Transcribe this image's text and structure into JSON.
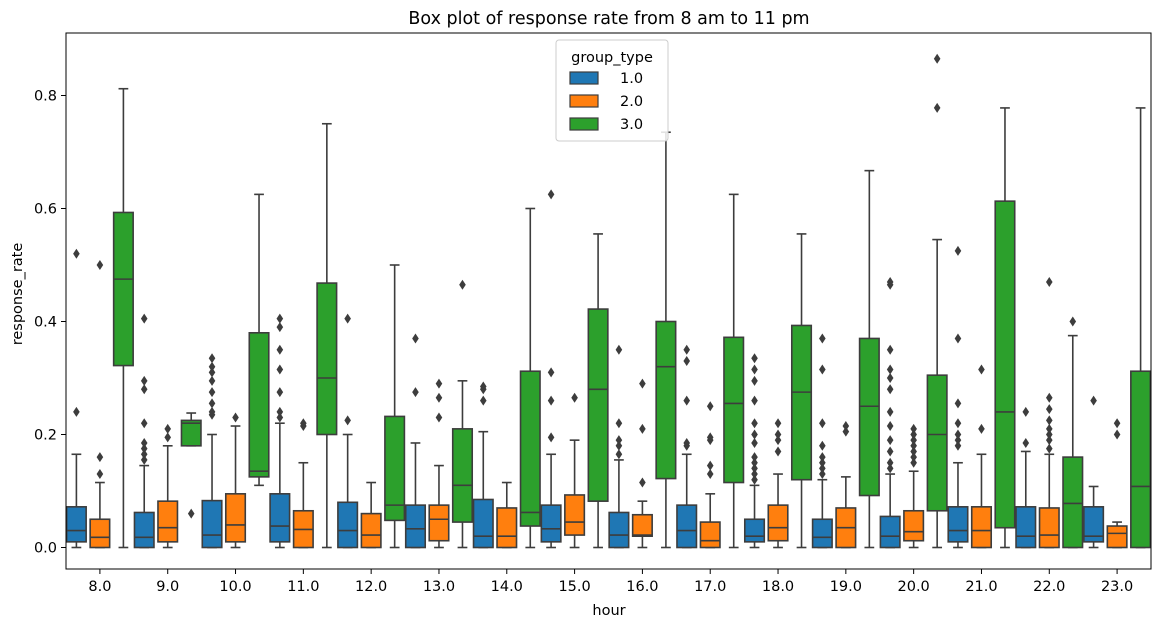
{
  "chart_data": {
    "type": "box",
    "title": "Box plot of response rate from 8 am to 11 pm",
    "xlabel": "hour",
    "ylabel": "response_rate",
    "ylim": [
      -0.04,
      0.91
    ],
    "yticks": [
      0.0,
      0.2,
      0.4,
      0.6,
      0.8
    ],
    "ytick_labels": [
      "0.0",
      "0.2",
      "0.4",
      "0.6",
      "0.8"
    ],
    "categories": [
      "8.0",
      "9.0",
      "10.0",
      "11.0",
      "12.0",
      "13.0",
      "14.0",
      "15.0",
      "16.0",
      "17.0",
      "18.0",
      "19.0",
      "20.0",
      "21.0",
      "22.0",
      "23.0"
    ],
    "grid": false,
    "legend": {
      "title": "group_type",
      "position": "top-center"
    },
    "series": [
      {
        "name": "1.0",
        "color": "#1f77b4",
        "boxes": [
          {
            "whislo": 0.0,
            "q1": 0.01,
            "med": 0.03,
            "q3": 0.072,
            "whishi": 0.165,
            "fliers": [
              0.24,
              0.52
            ]
          },
          {
            "whislo": 0.0,
            "q1": 0.0,
            "med": 0.018,
            "q3": 0.062,
            "whishi": 0.145,
            "fliers": [
              0.155,
              0.165,
              0.175,
              0.185,
              0.22,
              0.28,
              0.295,
              0.405
            ]
          },
          {
            "whislo": 0.0,
            "q1": 0.0,
            "med": 0.022,
            "q3": 0.083,
            "whishi": 0.2,
            "fliers": [
              0.235,
              0.24,
              0.255,
              0.275,
              0.295,
              0.31,
              0.32,
              0.335
            ]
          },
          {
            "whislo": 0.0,
            "q1": 0.01,
            "med": 0.038,
            "q3": 0.095,
            "whishi": 0.22,
            "fliers": [
              0.23,
              0.24,
              0.275,
              0.315,
              0.35,
              0.39,
              0.405
            ]
          },
          {
            "whislo": 0.0,
            "q1": 0.0,
            "med": 0.03,
            "q3": 0.08,
            "whishi": 0.2,
            "fliers": [
              0.225,
              0.405
            ]
          },
          {
            "whislo": 0.0,
            "q1": 0.0,
            "med": 0.033,
            "q3": 0.075,
            "whishi": 0.185,
            "fliers": [
              0.275,
              0.37
            ]
          },
          {
            "whislo": 0.0,
            "q1": 0.0,
            "med": 0.02,
            "q3": 0.085,
            "whishi": 0.205,
            "fliers": [
              0.26,
              0.28,
              0.285
            ]
          },
          {
            "whislo": 0.0,
            "q1": 0.01,
            "med": 0.033,
            "q3": 0.075,
            "whishi": 0.165,
            "fliers": [
              0.195,
              0.26,
              0.31,
              0.625
            ]
          },
          {
            "whislo": 0.0,
            "q1": 0.0,
            "med": 0.022,
            "q3": 0.062,
            "whishi": 0.155,
            "fliers": [
              0.165,
              0.18,
              0.19,
              0.22,
              0.35
            ]
          },
          {
            "whislo": 0.0,
            "q1": 0.0,
            "med": 0.03,
            "q3": 0.075,
            "whishi": 0.165,
            "fliers": [
              0.18,
              0.185,
              0.26,
              0.33,
              0.35
            ]
          },
          {
            "whislo": 0.0,
            "q1": 0.01,
            "med": 0.02,
            "q3": 0.05,
            "whishi": 0.11,
            "fliers": [
              0.12,
              0.13,
              0.14,
              0.15,
              0.16,
              0.185,
              0.2,
              0.22,
              0.26,
              0.295,
              0.315,
              0.335
            ]
          },
          {
            "whislo": 0.0,
            "q1": 0.0,
            "med": 0.018,
            "q3": 0.05,
            "whishi": 0.12,
            "fliers": [
              0.13,
              0.14,
              0.15,
              0.16,
              0.18,
              0.22,
              0.315,
              0.37
            ]
          },
          {
            "whislo": 0.0,
            "q1": 0.0,
            "med": 0.02,
            "q3": 0.055,
            "whishi": 0.13,
            "fliers": [
              0.14,
              0.15,
              0.17,
              0.19,
              0.215,
              0.24,
              0.28,
              0.3,
              0.315,
              0.35,
              0.465,
              0.47
            ]
          },
          {
            "whislo": 0.0,
            "q1": 0.01,
            "med": 0.03,
            "q3": 0.072,
            "whishi": 0.15,
            "fliers": [
              0.18,
              0.19,
              0.2,
              0.22,
              0.255,
              0.37,
              0.525
            ]
          },
          {
            "whislo": 0.0,
            "q1": 0.0,
            "med": 0.02,
            "q3": 0.072,
            "whishi": 0.17,
            "fliers": [
              0.185,
              0.24
            ]
          },
          {
            "whislo": 0.0,
            "q1": 0.01,
            "med": 0.02,
            "q3": 0.072,
            "whishi": 0.108,
            "fliers": [
              0.26
            ]
          }
        ]
      },
      {
        "name": "2.0",
        "color": "#ff7f0e",
        "boxes": [
          {
            "whislo": 0.0,
            "q1": 0.0,
            "med": 0.018,
            "q3": 0.05,
            "whishi": 0.115,
            "fliers": [
              0.13,
              0.16,
              0.5
            ]
          },
          {
            "whislo": 0.0,
            "q1": 0.01,
            "med": 0.035,
            "q3": 0.082,
            "whishi": 0.18,
            "fliers": [
              0.195,
              0.21
            ]
          },
          {
            "whislo": 0.0,
            "q1": 0.01,
            "med": 0.04,
            "q3": 0.095,
            "whishi": 0.215,
            "fliers": [
              0.23
            ]
          },
          {
            "whislo": 0.0,
            "q1": 0.0,
            "med": 0.032,
            "q3": 0.065,
            "whishi": 0.15,
            "fliers": [
              0.215,
              0.22
            ]
          },
          {
            "whislo": 0.0,
            "q1": 0.0,
            "med": 0.022,
            "q3": 0.06,
            "whishi": 0.115,
            "fliers": []
          },
          {
            "whislo": 0.0,
            "q1": 0.012,
            "med": 0.05,
            "q3": 0.075,
            "whishi": 0.145,
            "fliers": [
              0.23,
              0.265,
              0.29
            ]
          },
          {
            "whislo": 0.0,
            "q1": 0.0,
            "med": 0.02,
            "q3": 0.07,
            "whishi": 0.115,
            "fliers": []
          },
          {
            "whislo": 0.0,
            "q1": 0.022,
            "med": 0.045,
            "q3": 0.093,
            "whishi": 0.19,
            "fliers": [
              0.265
            ]
          },
          {
            "whislo": 0.0,
            "q1": 0.02,
            "med": 0.022,
            "q3": 0.058,
            "whishi": 0.082,
            "fliers": [
              0.115,
              0.21,
              0.29
            ]
          },
          {
            "whislo": 0.0,
            "q1": 0.0,
            "med": 0.012,
            "q3": 0.045,
            "whishi": 0.095,
            "fliers": [
              0.13,
              0.145,
              0.19,
              0.195,
              0.25
            ]
          },
          {
            "whislo": 0.0,
            "q1": 0.012,
            "med": 0.035,
            "q3": 0.075,
            "whishi": 0.13,
            "fliers": [
              0.17,
              0.19,
              0.2,
              0.22
            ]
          },
          {
            "whislo": 0.0,
            "q1": 0.0,
            "med": 0.035,
            "q3": 0.07,
            "whishi": 0.125,
            "fliers": [
              0.205,
              0.215
            ]
          },
          {
            "whislo": 0.0,
            "q1": 0.012,
            "med": 0.028,
            "q3": 0.065,
            "whishi": 0.135,
            "fliers": [
              0.15,
              0.16,
              0.17,
              0.18,
              0.19,
              0.2,
              0.21
            ]
          },
          {
            "whislo": 0.0,
            "q1": 0.0,
            "med": 0.03,
            "q3": 0.072,
            "whishi": 0.165,
            "fliers": [
              0.21,
              0.315
            ]
          },
          {
            "whislo": 0.0,
            "q1": 0.0,
            "med": 0.022,
            "q3": 0.07,
            "whishi": 0.165,
            "fliers": [
              0.175,
              0.19,
              0.2,
              0.21,
              0.225,
              0.245,
              0.265,
              0.47
            ]
          },
          {
            "whislo": 0.0,
            "q1": 0.0,
            "med": 0.025,
            "q3": 0.038,
            "whishi": 0.045,
            "fliers": [
              0.2,
              0.22
            ]
          }
        ]
      },
      {
        "name": "3.0",
        "color": "#2ca02c",
        "boxes": [
          {
            "whislo": 0.0,
            "q1": 0.322,
            "med": 0.475,
            "q3": 0.593,
            "whishi": 0.812,
            "fliers": []
          },
          {
            "whislo": 0.18,
            "q1": 0.18,
            "med": 0.22,
            "q3": 0.225,
            "whishi": 0.238,
            "fliers": [
              0.06
            ]
          },
          {
            "whislo": 0.11,
            "q1": 0.125,
            "med": 0.135,
            "q3": 0.38,
            "whishi": 0.625,
            "fliers": []
          },
          {
            "whislo": 0.0,
            "q1": 0.2,
            "med": 0.3,
            "q3": 0.468,
            "whishi": 0.75,
            "fliers": []
          },
          {
            "whislo": 0.0,
            "q1": 0.048,
            "med": 0.075,
            "q3": 0.232,
            "whishi": 0.5,
            "fliers": []
          },
          {
            "whislo": 0.0,
            "q1": 0.045,
            "med": 0.11,
            "q3": 0.21,
            "whishi": 0.295,
            "fliers": [
              0.465
            ]
          },
          {
            "whislo": 0.0,
            "q1": 0.038,
            "med": 0.062,
            "q3": 0.312,
            "whishi": 0.6,
            "fliers": []
          },
          {
            "whislo": 0.0,
            "q1": 0.082,
            "med": 0.28,
            "q3": 0.422,
            "whishi": 0.555,
            "fliers": []
          },
          {
            "whislo": 0.0,
            "q1": 0.122,
            "med": 0.32,
            "q3": 0.4,
            "whishi": 0.735,
            "fliers": []
          },
          {
            "whislo": 0.0,
            "q1": 0.115,
            "med": 0.255,
            "q3": 0.372,
            "whishi": 0.625,
            "fliers": []
          },
          {
            "whislo": 0.0,
            "q1": 0.12,
            "med": 0.275,
            "q3": 0.393,
            "whishi": 0.555,
            "fliers": []
          },
          {
            "whislo": 0.0,
            "q1": 0.092,
            "med": 0.25,
            "q3": 0.37,
            "whishi": 0.667,
            "fliers": []
          },
          {
            "whislo": 0.0,
            "q1": 0.065,
            "med": 0.2,
            "q3": 0.305,
            "whishi": 0.545,
            "fliers": [
              0.778,
              0.865
            ]
          },
          {
            "whislo": 0.0,
            "q1": 0.035,
            "med": 0.24,
            "q3": 0.613,
            "whishi": 0.778,
            "fliers": []
          },
          {
            "whislo": 0.0,
            "q1": 0.0,
            "med": 0.078,
            "q3": 0.16,
            "whishi": 0.375,
            "fliers": [
              0.4
            ]
          },
          {
            "whislo": 0.0,
            "q1": 0.0,
            "med": 0.108,
            "q3": 0.312,
            "whishi": 0.778,
            "fliers": []
          }
        ]
      }
    ]
  }
}
